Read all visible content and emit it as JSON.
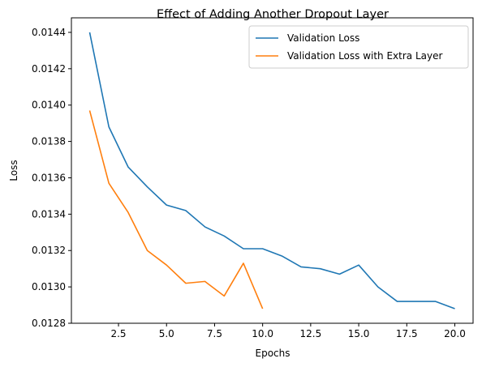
{
  "chart_data": {
    "type": "line",
    "title": "Effect of Adding Another Dropout Layer",
    "xlabel": "Epochs",
    "ylabel": "Loss",
    "xlim": [
      0.05,
      20.95
    ],
    "ylim": [
      0.0128,
      0.01448
    ],
    "xticks": [
      2.5,
      5.0,
      7.5,
      10.0,
      12.5,
      15.0,
      17.5,
      20.0
    ],
    "xtick_labels": [
      "2.5",
      "5.0",
      "7.5",
      "10.0",
      "12.5",
      "15.0",
      "17.5",
      "20.0"
    ],
    "yticks": [
      0.0128,
      0.013,
      0.0132,
      0.0134,
      0.0136,
      0.0138,
      0.014,
      0.0142,
      0.0144
    ],
    "ytick_labels": [
      "0.0128",
      "0.0130",
      "0.0132",
      "0.0134",
      "0.0136",
      "0.0138",
      "0.0140",
      "0.0142",
      "0.0144"
    ],
    "grid": false,
    "legend_position": "top-right",
    "series": [
      {
        "name": "Validation Loss",
        "color": "#1f77b4",
        "x": [
          1,
          2,
          3,
          4,
          5,
          6,
          7,
          8,
          9,
          10,
          11,
          12,
          13,
          14,
          15,
          16,
          17,
          18,
          19,
          20
        ],
        "y": [
          0.0144,
          0.01388,
          0.01366,
          0.01355,
          0.01345,
          0.01342,
          0.01333,
          0.01328,
          0.01321,
          0.01321,
          0.01317,
          0.01311,
          0.0131,
          0.01307,
          0.01312,
          0.013,
          0.01292,
          0.01292,
          0.01292,
          0.01288
        ]
      },
      {
        "name": "Validation Loss with Extra Layer",
        "color": "#ff7f0e",
        "x": [
          1,
          2,
          3,
          4,
          5,
          6,
          7,
          8,
          9,
          10
        ],
        "y": [
          0.01397,
          0.01357,
          0.01341,
          0.0132,
          0.01312,
          0.01302,
          0.01303,
          0.01295,
          0.01313,
          0.01288
        ]
      }
    ]
  }
}
